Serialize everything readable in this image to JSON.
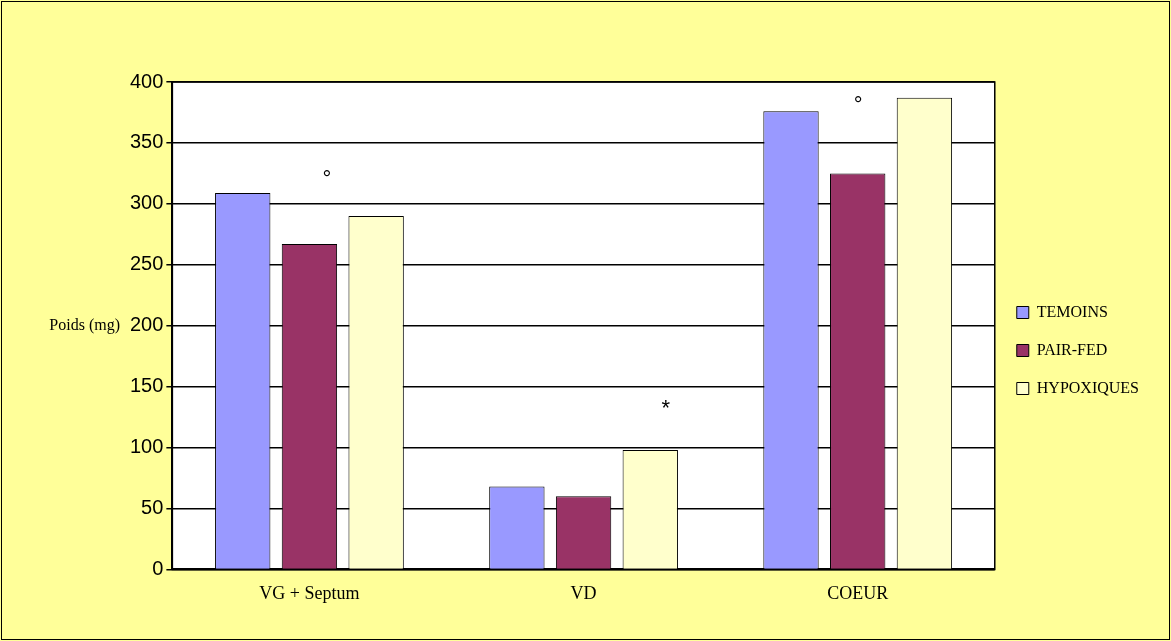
{
  "chart_data": {
    "type": "bar",
    "ylabel": "Poids (mg)",
    "categories": [
      "VG + Septum",
      "VD",
      "COEUR"
    ],
    "series": [
      {
        "name": "TEMOINS",
        "color": "#9999ff",
        "values": [
          309,
          68,
          376
        ]
      },
      {
        "name": "PAIR-FED",
        "color": "#993366",
        "values": [
          267,
          60,
          325
        ]
      },
      {
        "name": "HYPOXIQUES",
        "color": "#ffffcc",
        "values": [
          290,
          98,
          387
        ]
      }
    ],
    "ylim": [
      0,
      400
    ],
    "yticks": [
      0,
      50,
      100,
      150,
      200,
      250,
      300,
      350,
      400
    ],
    "grid": "y",
    "legend": "right",
    "annotations": [
      "°",
      "*",
      "°"
    ]
  }
}
